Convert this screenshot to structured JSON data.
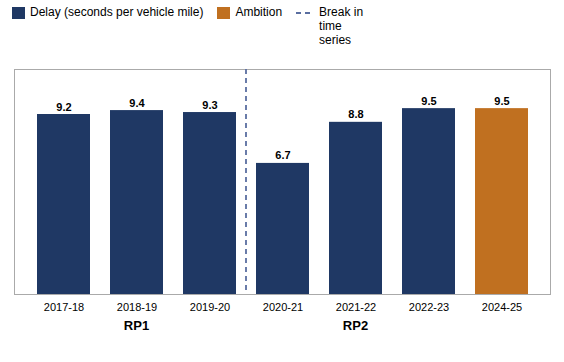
{
  "chart_data": {
    "type": "bar",
    "categories": [
      "2017-18",
      "2018-19",
      "2019-20",
      "2020-21",
      "2021-22",
      "2022-23",
      "2024-25"
    ],
    "values": [
      9.2,
      9.4,
      9.3,
      6.7,
      8.8,
      9.5,
      9.5
    ],
    "colors": [
      "#1f3864",
      "#1f3864",
      "#1f3864",
      "#1f3864",
      "#1f3864",
      "#1f3864",
      "#c07020"
    ],
    "ylim": [
      0,
      11.5
    ],
    "tick_labels": "x",
    "data_labels": true,
    "grid": false,
    "legend": "upper left",
    "legend_entries": [
      {
        "label": "Delay (seconds per vehicle mile)",
        "color": "#1f3864",
        "marker": "square"
      },
      {
        "label": "Ambition",
        "color": "#c07020",
        "marker": "square"
      },
      {
        "label": "Break in\ntime\nseries",
        "color": "#5a6ea0",
        "line_style": "dashed"
      }
    ],
    "annotations": [
      {
        "text": "RP1",
        "categories": [
          "2017-18",
          "2018-19",
          "2019-20"
        ]
      },
      {
        "text": "RP2",
        "categories": [
          "2020-21",
          "2021-22",
          "2022-23"
        ]
      }
    ],
    "break_line": {
      "after": "2019-20",
      "color": "#5a6ea0",
      "line_style": "dashed"
    }
  }
}
